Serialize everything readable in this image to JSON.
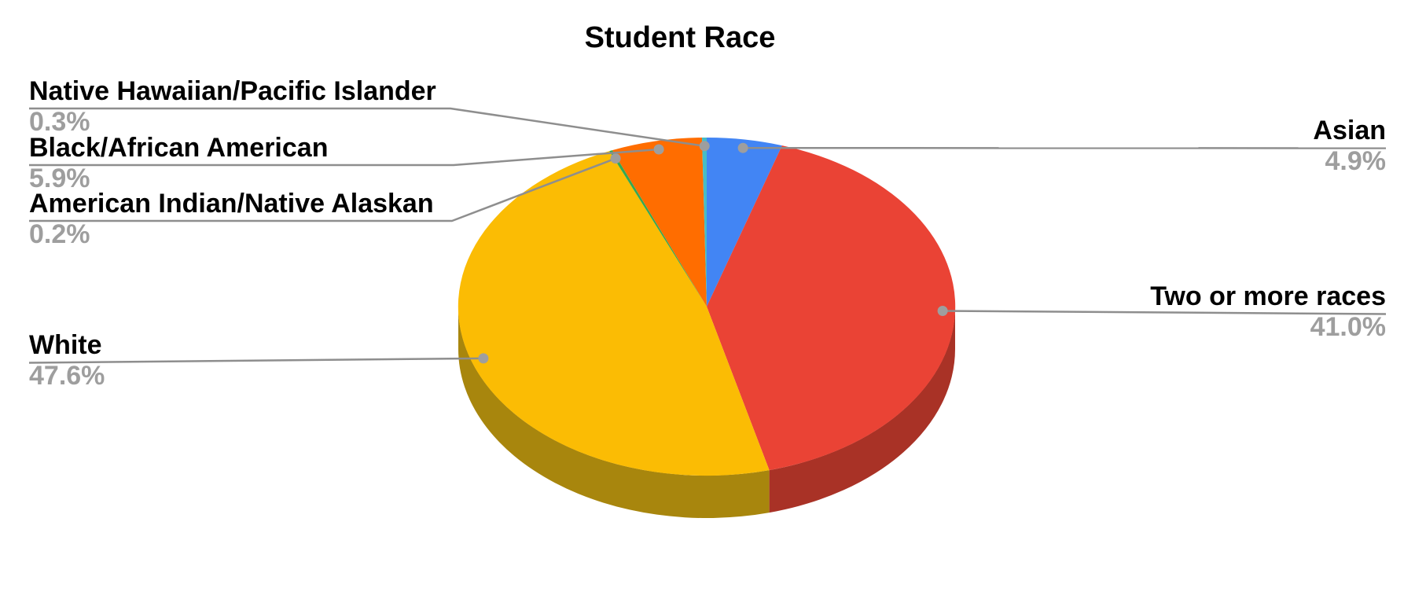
{
  "chart_data": {
    "type": "pie",
    "effect": "3d",
    "title": "Student Race",
    "labels_style": "callout-with-percent",
    "slices": [
      {
        "label": "Asian",
        "value": 4.9,
        "pct": "4.9%",
        "color": "#4285F4",
        "side_color": "#2E5FB8"
      },
      {
        "label": "Two or more races",
        "value": 41.0,
        "pct": "41.0%",
        "color": "#EA4335",
        "side_color": "#A93226"
      },
      {
        "label": "White",
        "value": 47.6,
        "pct": "47.6%",
        "color": "#FBBC04",
        "side_color": "#A8860D"
      },
      {
        "label": "American Indian/Native Alaskan",
        "value": 0.2,
        "pct": "0.2%",
        "color": "#34A853",
        "side_color": "#1E7E34"
      },
      {
        "label": "Black/African American",
        "value": 5.9,
        "pct": "5.9%",
        "color": "#FF6D00",
        "side_color": "#B34C00"
      },
      {
        "label": "Native Hawaiian/Pacific Islander",
        "value": 0.3,
        "pct": "0.3%",
        "color": "#46BDC6",
        "side_color": "#2F8A91"
      }
    ],
    "colors": {
      "label_text": "#000000",
      "pct_text": "#9E9E9E",
      "leader_line": "#8E8E8E",
      "leader_dot": "#9E9E9E",
      "background": "#FFFFFF"
    }
  }
}
